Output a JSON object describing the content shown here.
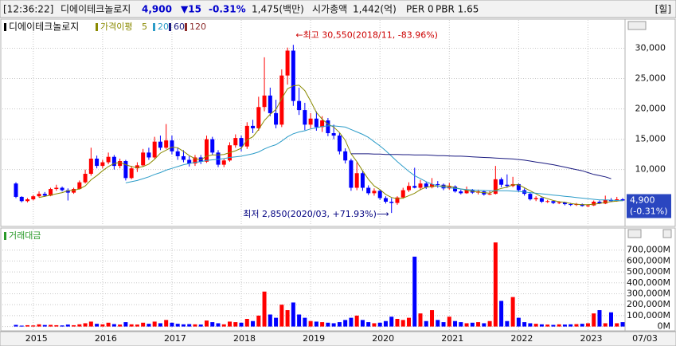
{
  "header": {
    "time": "[12:36:22]",
    "name": "디에이테크놀로지",
    "price": "4,900",
    "change": "▼15",
    "change_pct": "-0.31%",
    "volume": "1,475(백만)",
    "market_cap_label": "시가총액",
    "market_cap": "1,442(억)",
    "per": "PER 0",
    "pbr": "PBR 1.65",
    "button": "[힐]"
  },
  "chart_data": {
    "type": "candlestick",
    "title": "디에이테크놀로지",
    "up_color": "#ff0000",
    "down_color": "#0000ff",
    "grid": true,
    "categories": [
      null,
      null,
      null,
      "2015",
      null,
      null,
      null,
      null,
      null,
      null,
      null,
      null,
      null,
      null,
      null,
      "2016",
      null,
      null,
      null,
      null,
      null,
      null,
      null,
      null,
      null,
      null,
      null,
      "2017",
      null,
      null,
      null,
      null,
      null,
      null,
      null,
      null,
      null,
      null,
      null,
      "2018",
      null,
      null,
      null,
      null,
      null,
      null,
      null,
      null,
      null,
      null,
      null,
      "2019",
      null,
      null,
      null,
      null,
      null,
      null,
      null,
      null,
      null,
      null,
      null,
      "2020",
      null,
      null,
      null,
      null,
      null,
      null,
      null,
      null,
      null,
      null,
      null,
      "2021",
      null,
      null,
      null,
      null,
      null,
      null,
      null,
      null,
      null,
      null,
      null,
      "2022",
      null,
      null,
      null,
      null,
      null,
      null,
      null,
      null,
      null,
      null,
      null,
      "2023",
      null,
      null,
      null,
      null,
      null,
      null
    ],
    "open": [
      7700,
      5500,
      4800,
      5100,
      5600,
      6000,
      5700,
      6800,
      7000,
      6600,
      6200,
      6800,
      7900,
      9300,
      11800,
      10600,
      11200,
      12100,
      10600,
      11400,
      8600,
      10200,
      10700,
      12800,
      12000,
      14600,
      13600,
      14800,
      13000,
      12200,
      11600,
      11000,
      12000,
      11300,
      15000,
      12800,
      10800,
      11500,
      14000,
      15200,
      13800,
      17200,
      16800,
      20300,
      22200,
      19300,
      17400,
      25500,
      29600,
      21300,
      19800,
      17400,
      18400,
      17000,
      18100,
      16000,
      15600,
      13000,
      11500,
      7000,
      9400,
      7000,
      6100,
      6500,
      5300,
      4700,
      4500,
      5400,
      6600,
      7300,
      7000,
      7700,
      7100,
      7600,
      7500,
      6900,
      7200,
      6400,
      6100,
      6600,
      6200,
      6400,
      5900,
      6000,
      8400,
      7500,
      7300,
      7600,
      6600,
      6000,
      5100,
      5300,
      4700,
      4800,
      4500,
      4600,
      4300,
      4200,
      4300,
      4000,
      4100,
      4700,
      4400,
      5000,
      4800,
      5100
    ],
    "high": [
      7900,
      5600,
      5300,
      5800,
      6400,
      6300,
      7000,
      7500,
      7200,
      6900,
      7000,
      8200,
      10000,
      13600,
      12300,
      11600,
      12800,
      12400,
      11800,
      11600,
      10600,
      11200,
      13400,
      13600,
      15400,
      15600,
      17500,
      15600,
      13600,
      13200,
      12200,
      12400,
      12400,
      15600,
      15400,
      13200,
      11800,
      14500,
      15800,
      15600,
      17800,
      18200,
      22000,
      28500,
      23500,
      21500,
      26500,
      30100,
      30550,
      23500,
      21000,
      19300,
      19600,
      18800,
      18500,
      17400,
      16000,
      13500,
      11800,
      11200,
      9800,
      7400,
      6900,
      6700,
      5600,
      5300,
      5600,
      7000,
      7900,
      10300,
      8300,
      8000,
      8600,
      8100,
      7700,
      7800,
      7400,
      6700,
      7200,
      6800,
      6700,
      6600,
      6500,
      10600,
      8700,
      9200,
      8800,
      7700,
      6900,
      6200,
      5600,
      5400,
      5000,
      4900,
      4800,
      4700,
      4500,
      4500,
      4400,
      4300,
      4900,
      4900,
      5700,
      5300,
      5500,
      5300
    ],
    "low": [
      5300,
      4600,
      4600,
      4900,
      5400,
      5500,
      5600,
      6500,
      6400,
      4900,
      6000,
      6700,
      7700,
      9000,
      10200,
      10200,
      10900,
      10000,
      10200,
      8200,
      8400,
      9600,
      10500,
      11600,
      11800,
      13200,
      13400,
      12500,
      11600,
      11200,
      10500,
      10600,
      10900,
      11100,
      12400,
      10400,
      10400,
      11300,
      13600,
      13000,
      13400,
      16000,
      16400,
      19600,
      18800,
      16800,
      17000,
      24000,
      20500,
      19000,
      16500,
      16800,
      16400,
      16200,
      15500,
      15000,
      12500,
      11000,
      6500,
      6600,
      6500,
      5800,
      5700,
      5000,
      4400,
      2850,
      4200,
      5200,
      6300,
      6900,
      6600,
      6800,
      6900,
      7000,
      6600,
      6700,
      6200,
      5900,
      6000,
      6000,
      5900,
      5700,
      5800,
      5900,
      7100,
      7000,
      7100,
      6300,
      5700,
      4900,
      4800,
      4500,
      4500,
      4300,
      4300,
      4100,
      4000,
      4000,
      3900,
      3800,
      4000,
      4300,
      4300,
      4700,
      4700,
      4800
    ],
    "close": [
      5500,
      4800,
      5100,
      5600,
      6000,
      5700,
      6800,
      7000,
      6600,
      6200,
      6800,
      7900,
      9300,
      11800,
      10600,
      11200,
      12100,
      10600,
      11400,
      8600,
      10200,
      10700,
      12800,
      12000,
      14600,
      13600,
      14800,
      13000,
      12200,
      11600,
      11000,
      12000,
      11300,
      15000,
      12800,
      10800,
      11500,
      14000,
      15200,
      13800,
      17200,
      16800,
      20300,
      22200,
      19300,
      17400,
      25500,
      29600,
      21300,
      19800,
      17400,
      18400,
      17000,
      18100,
      16000,
      15600,
      13000,
      11500,
      7000,
      9400,
      7000,
      6100,
      6500,
      5300,
      4700,
      4500,
      5400,
      6600,
      7300,
      7000,
      7700,
      7100,
      7600,
      7500,
      6900,
      7200,
      6400,
      6100,
      6600,
      6200,
      6400,
      5900,
      6000,
      8400,
      7500,
      7300,
      7600,
      6600,
      6000,
      5100,
      5300,
      4700,
      4800,
      4500,
      4600,
      4300,
      4200,
      4300,
      4000,
      4100,
      4700,
      4400,
      5000,
      4800,
      5100,
      4900
    ],
    "ylim": [
      500,
      34000
    ],
    "yticks": [
      {
        "value": 10000,
        "label": "10,000"
      },
      {
        "value": 15000,
        "label": "15,000"
      },
      {
        "value": 20000,
        "label": "20,000"
      },
      {
        "value": 25000,
        "label": "25,000"
      },
      {
        "value": 30000,
        "label": "30,000"
      }
    ],
    "moving_average_label": "가격이평",
    "series": [
      {
        "name": "5",
        "color": "#8a8a00",
        "values": [
          null,
          null,
          null,
          null,
          5400,
          5600,
          5800,
          6000,
          6200,
          6500,
          6600,
          6800,
          7300,
          8300,
          9000,
          9800,
          10500,
          11000,
          11200,
          10800,
          10500,
          10300,
          10500,
          10900,
          11700,
          12700,
          13200,
          13700,
          13600,
          13000,
          12300,
          11800,
          11600,
          12200,
          12400,
          12400,
          12500,
          12800,
          13100,
          13500,
          14900,
          15400,
          16600,
          18100,
          19100,
          19900,
          21700,
          23300,
          23800,
          23900,
          23000,
          21300,
          19400,
          18300,
          17500,
          17000,
          16100,
          14800,
          12600,
          11300,
          9800,
          8400,
          7300,
          6700,
          5900,
          5400,
          5200,
          5300,
          5700,
          6100,
          6700,
          7100,
          7200,
          7300,
          7300,
          7300,
          7000,
          6800,
          6600,
          6400,
          6300,
          6200,
          6100,
          6600,
          6900,
          7100,
          7500,
          7500,
          7000,
          6500,
          6000,
          5500,
          5200,
          4900,
          4700,
          4600,
          4400,
          4300,
          4200,
          4200,
          4300,
          4400,
          4600,
          4700,
          4800,
          4900
        ]
      },
      {
        "name": "20",
        "color": "#2c9cc8",
        "values": [
          null,
          null,
          null,
          null,
          null,
          null,
          null,
          null,
          null,
          null,
          null,
          null,
          null,
          null,
          null,
          null,
          null,
          null,
          null,
          7800,
          8000,
          8200,
          8500,
          8800,
          9200,
          9500,
          9900,
          10200,
          10500,
          10800,
          11000,
          11200,
          11300,
          11500,
          11600,
          11700,
          11800,
          12000,
          12100,
          12200,
          12400,
          12600,
          12900,
          13400,
          13800,
          14100,
          14700,
          15400,
          15900,
          16200,
          16400,
          16700,
          16900,
          17100,
          17200,
          17200,
          17100,
          17000,
          16600,
          16200,
          15800,
          15300,
          14600,
          13900,
          13100,
          12200,
          11300,
          10500,
          9700,
          9000,
          8500,
          8000,
          7600,
          7300,
          7100,
          7000,
          6900,
          6800,
          6700,
          6650,
          6600,
          6550,
          6500,
          6500,
          6500,
          6500,
          6450,
          6400,
          6300,
          6200,
          6100,
          6000,
          5900,
          5800,
          5700,
          5600,
          5500,
          5400,
          5300,
          5200,
          5100,
          5000,
          5000,
          4950,
          4900,
          4850
        ]
      },
      {
        "name": "60",
        "color": "#1a1a80",
        "values": [
          null,
          null,
          null,
          null,
          null,
          null,
          null,
          null,
          null,
          null,
          null,
          null,
          null,
          null,
          null,
          null,
          null,
          null,
          null,
          null,
          null,
          null,
          null,
          null,
          null,
          null,
          null,
          null,
          null,
          null,
          null,
          null,
          null,
          null,
          null,
          null,
          null,
          null,
          null,
          null,
          null,
          null,
          null,
          null,
          null,
          null,
          null,
          null,
          null,
          null,
          null,
          null,
          null,
          null,
          null,
          null,
          null,
          null,
          12600,
          12600,
          12600,
          12600,
          12550,
          12550,
          12500,
          12500,
          12500,
          12450,
          12450,
          12400,
          12400,
          12400,
          12350,
          12300,
          12300,
          12250,
          12200,
          12200,
          12150,
          12100,
          12050,
          12000,
          11950,
          11900,
          11850,
          11800,
          11750,
          11650,
          11550,
          11400,
          11250,
          11100,
          10950,
          10800,
          10600,
          10400,
          10200,
          10000,
          9800,
          9500,
          9200,
          9000,
          8800,
          8500,
          null,
          null
        ]
      },
      {
        "name": "120",
        "color": "#8b2a2a"
      }
    ],
    "annotations": [
      {
        "text": "←최고 30,550(2018/11, -83.96%)",
        "color": "#cc0000"
      },
      {
        "text": "최저 2,850(2020/03, +71.93%)⟶",
        "color": "#000080"
      }
    ],
    "last_price_label": "4,900",
    "last_change_label": "(-0.31%)",
    "end_date_label": "07/03",
    "volume": {
      "title": "거래대금",
      "color": "#2a9a2a",
      "values": [
        15000,
        8000,
        12000,
        10000,
        20000,
        14000,
        15000,
        12000,
        10000,
        18000,
        12000,
        20000,
        30000,
        45000,
        25000,
        20000,
        35000,
        22000,
        18000,
        40000,
        20000,
        18000,
        35000,
        25000,
        45000,
        30000,
        60000,
        35000,
        25000,
        20000,
        22000,
        20000,
        18000,
        55000,
        40000,
        30000,
        20000,
        45000,
        40000,
        35000,
        70000,
        50000,
        100000,
        320000,
        110000,
        80000,
        200000,
        150000,
        220000,
        110000,
        80000,
        50000,
        45000,
        40000,
        35000,
        30000,
        40000,
        60000,
        80000,
        100000,
        60000,
        40000,
        30000,
        35000,
        50000,
        90000,
        70000,
        60000,
        80000,
        640000,
        120000,
        50000,
        150000,
        60000,
        40000,
        90000,
        50000,
        40000,
        30000,
        35000,
        40000,
        30000,
        50000,
        770000,
        235000,
        50000,
        270000,
        80000,
        40000,
        30000,
        25000,
        20000,
        18000,
        15000,
        20000,
        18000,
        20000,
        22000,
        25000,
        30000,
        120000,
        150000,
        30000,
        130000,
        30000,
        40000
      ],
      "ylim": [
        -25000,
        800000
      ],
      "yticks": [
        {
          "value": 0,
          "label": "0M"
        },
        {
          "value": 100000,
          "label": "100,000M"
        },
        {
          "value": 200000,
          "label": "200,000M"
        },
        {
          "value": 300000,
          "label": "300,000M"
        },
        {
          "value": 400000,
          "label": "400,000M"
        },
        {
          "value": 500000,
          "label": "500,000M"
        },
        {
          "value": 600000,
          "label": "600,000M"
        },
        {
          "value": 700000,
          "label": "700,000M"
        }
      ]
    }
  }
}
